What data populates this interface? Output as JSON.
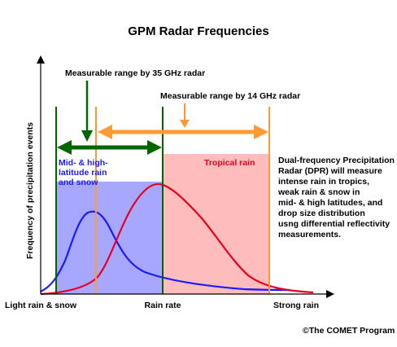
{
  "title": "GPM Radar Frequencies",
  "y_axis_label": "Frequency of precipitation events",
  "x_axis": {
    "left_label": "Light rain & snow",
    "center_label": "Rain rate",
    "right_label": "Strong rain"
  },
  "ranges": {
    "radar_35": "Measurable range by 35 GHz radar",
    "radar_14": "Measurable range by 14 GHz radar"
  },
  "regions": {
    "mid_high_lines": [
      "Mid- & high-",
      "latitude rain",
      "and snow"
    ],
    "tropical": "Tropical rain"
  },
  "description_lines": [
    "Dual-frequency Precipitation",
    "Radar (DPR) will measure",
    "intense rain in tropics,",
    "weak rain & snow in",
    "mid- & high latitudes, and",
    "drop size distribution",
    "usng differential reflectivity",
    "measurements."
  ],
  "copyright": "©The COMET Program",
  "colors": {
    "blue_region": "#a7a7ff",
    "red_region": "#ffbcbc",
    "blue_curve": "#1a1aff",
    "red_curve": "#e8001c",
    "green": "#006600",
    "orange": "#ff9933"
  }
}
